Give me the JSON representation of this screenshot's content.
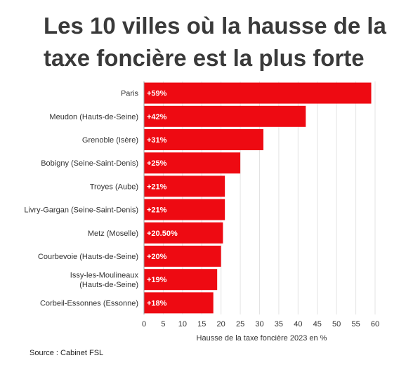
{
  "chart_data": {
    "type": "bar",
    "orientation": "horizontal",
    "title": "Les 10 villes où la hausse de la taxe foncière est la plus forte",
    "xlabel": "Hausse de la taxe foncière 2023 en %",
    "ylabel": "",
    "xlim": [
      0,
      60
    ],
    "xticks": [
      0,
      5,
      10,
      15,
      20,
      25,
      30,
      35,
      40,
      45,
      50,
      55,
      60
    ],
    "categories": [
      "Paris",
      "Meudon (Hauts-de-Seine)",
      "Grenoble (Isère)",
      "Bobigny (Seine-Saint-Denis)",
      "Troyes (Aube)",
      "Livry-Gargan (Seine-Saint-Denis)",
      "Metz (Moselle)",
      "Courbevoie (Hauts-de-Seine)",
      "Issy-les-Moulineaux\n(Hauts-de-Seine)",
      "Corbeil-Essonnes (Essonne)"
    ],
    "values": [
      59,
      42,
      31,
      25,
      21,
      21,
      20.5,
      20,
      19,
      18
    ],
    "data_labels": [
      "+59%",
      "+42%",
      "+31%",
      "+25%",
      "+21%",
      "+21%",
      "+20.50%",
      "+20%",
      "+19%",
      "+18%"
    ],
    "bar_color": "#ee0a12",
    "grid": true,
    "legend": "none"
  },
  "source": "Source : Cabinet FSL"
}
